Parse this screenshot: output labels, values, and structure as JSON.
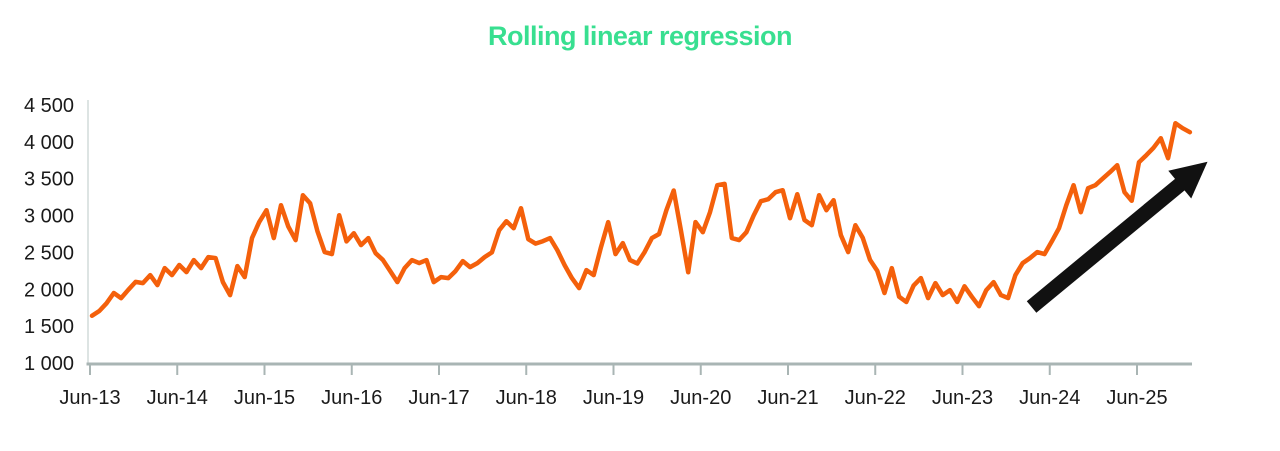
{
  "chart": {
    "title": "Rolling linear regression",
    "colors": {
      "title": "#38DF90",
      "series": "#F4600B",
      "axis": "#A9B5B4",
      "axis_light": "#DDE4E3",
      "tick_label": "#1A1A1A",
      "arrow": "#111111",
      "background": "#FFFFFF"
    }
  },
  "chart_data": {
    "type": "line",
    "title": "Rolling linear regression",
    "x_unit": "month",
    "x_start": "2013-06",
    "x_end": "2026-01",
    "grid": false,
    "legend": null,
    "ylim": [
      1000,
      4500
    ],
    "y_ticks": [
      {
        "label": "4 500",
        "value": 4500
      },
      {
        "label": "4 000",
        "value": 4000
      },
      {
        "label": "3 500",
        "value": 3500
      },
      {
        "label": "3 000",
        "value": 3000
      },
      {
        "label": "2 500",
        "value": 2500
      },
      {
        "label": "2 000",
        "value": 2000
      },
      {
        "label": "1 500",
        "value": 1500
      },
      {
        "label": "1 000",
        "value": 1000
      }
    ],
    "x_tick_labels": [
      "Jun-13",
      "Jun-14",
      "Jun-15",
      "Jun-16",
      "Jun-17",
      "Jun-18",
      "Jun-19",
      "Jun-20",
      "Jun-21",
      "Jun-22",
      "Jun-23",
      "Jun-24",
      "Jun-25"
    ],
    "series": [
      {
        "name": "Rolling linear regression",
        "start_month": "2013-06",
        "monthly_values": [
          1640,
          1705,
          1810,
          1949,
          1881,
          1995,
          2100,
          2084,
          2192,
          2057,
          2287,
          2192,
          2330,
          2233,
          2396,
          2287,
          2436,
          2423,
          2098,
          1921,
          2314,
          2165,
          2694,
          2911,
          3073,
          2694,
          3141,
          2850,
          2667,
          3276,
          3168,
          2790,
          2504,
          2477,
          3005,
          2650,
          2761,
          2599,
          2694,
          2490,
          2400,
          2250,
          2098,
          2287,
          2396,
          2355,
          2396,
          2098,
          2165,
          2152,
          2247,
          2382,
          2301,
          2355,
          2436,
          2500,
          2802,
          2924,
          2829,
          3100,
          2680,
          2620,
          2653,
          2694,
          2531,
          2328,
          2152,
          2016,
          2260,
          2192,
          2572,
          2911,
          2477,
          2626,
          2396,
          2350,
          2504,
          2694,
          2750,
          3073,
          3340,
          2800,
          2230,
          2911,
          2775,
          3046,
          3412,
          3430,
          2694,
          2667,
          2775,
          3000,
          3195,
          3222,
          3317,
          3344,
          2965,
          3290,
          2940,
          2870,
          3276,
          3073,
          3208,
          2734,
          2504,
          2870,
          2700,
          2400,
          2250,
          1949,
          2287,
          1900,
          1827,
          2050,
          2152,
          1881,
          2084,
          1921,
          1989,
          1827,
          2040,
          1900,
          1770,
          1989,
          2098,
          1921,
          1881,
          2192,
          2355,
          2423,
          2504,
          2477,
          2650,
          2829,
          3141,
          3412,
          3046,
          3371,
          3412,
          3500,
          3588,
          3683,
          3317,
          3200,
          3724,
          3819,
          3920,
          4050,
          3778,
          4253,
          4185,
          4131
        ]
      }
    ],
    "annotations": [
      {
        "type": "arrow",
        "name": "upward-trend-arrow",
        "from": {
          "month_index": 129.5,
          "value": 1760
        },
        "to": {
          "month_index": 153.7,
          "value": 3730
        }
      }
    ]
  }
}
